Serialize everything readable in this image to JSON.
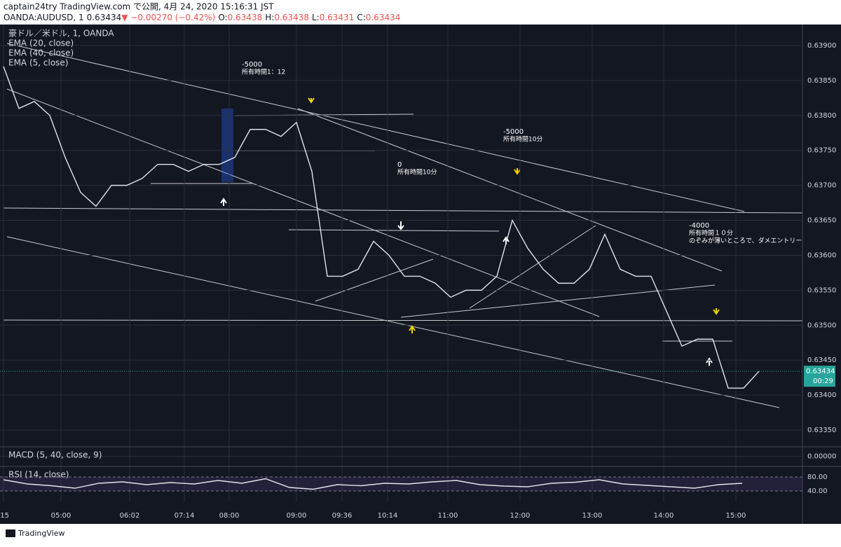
{
  "header": {
    "line1": "captain24try TradingView.com で公開, 4月 24, 2020 15:16:31 JST",
    "symbol": "OANDA:AUDUSD, 1",
    "last": "0.63434",
    "change": "▼ −0.00270 (−0.42%)",
    "o_label": "O:",
    "o": "0.63438",
    "h_label": "H:",
    "h": "0.63438",
    "l_label": "L:",
    "l": "0.63431",
    "c_label": "C:",
    "c": "0.63434"
  },
  "chart_data": [
    {
      "type": "line",
      "title": "豪ドル／米ドル, 1, OANDA",
      "indicators": [
        "EMA (20, close)",
        "EMA (40, close)",
        "EMA (5, close)"
      ],
      "color": "#e0e3eb",
      "values": [
        0.6387,
        0.6381,
        0.6382,
        0.638,
        0.6374,
        0.6369,
        0.6367,
        0.637,
        0.637,
        0.6371,
        0.6373,
        0.6373,
        0.6372,
        0.6373,
        0.6373,
        0.6374,
        0.6378,
        0.6378,
        0.6377,
        0.6379,
        0.6372,
        0.6357,
        0.6357,
        0.6358,
        0.6362,
        0.636,
        0.6357,
        0.6357,
        0.6356,
        0.6354,
        0.6355,
        0.6355,
        0.6357,
        0.6365,
        0.6361,
        0.6358,
        0.6356,
        0.6356,
        0.6358,
        0.6363,
        0.6358,
        0.6357,
        0.6357,
        0.6352,
        0.6347,
        0.6348,
        0.6348,
        0.6341,
        0.6341,
        0.63434
      ],
      "ylim": [
        0.63326,
        0.6393
      ],
      "yticks": [
        {
          "value": 0.639,
          "label": "0.63900"
        },
        {
          "value": 0.6385,
          "label": "0.63850"
        },
        {
          "value": 0.638,
          "label": "0.63800"
        },
        {
          "value": 0.6375,
          "label": "0.63750"
        },
        {
          "value": 0.637,
          "label": "0.63700"
        },
        {
          "value": 0.6365,
          "label": "0.63650"
        },
        {
          "value": 0.636,
          "label": "0.63600"
        },
        {
          "value": 0.6355,
          "label": "0.63550"
        },
        {
          "value": 0.635,
          "label": "0.63500"
        },
        {
          "value": 0.6345,
          "label": "0.63450"
        },
        {
          "value": 0.634,
          "label": "0.63400"
        },
        {
          "value": 0.6335,
          "label": "0.63350"
        }
      ],
      "xticks": [
        ":15",
        "05:00",
        "06:02",
        "07:14",
        "08:00",
        "09:00",
        "09:36",
        "10:14",
        "11:00",
        "12:00",
        "13:00",
        "14:00",
        "15:00"
      ],
      "countdown": "00:29",
      "grid": true,
      "annotations": [
        {
          "lines": [
            "-5000",
            "所有時間1：12"
          ]
        },
        {
          "lines": [
            "0",
            "所有時間10分"
          ]
        },
        {
          "lines": [
            "-5000",
            "所有時間10分"
          ]
        },
        {
          "lines": [
            "-4000",
            "所有時間１０分",
            "のぞみが薄いところで、ダメエントリー"
          ]
        }
      ]
    },
    {
      "type": "macd",
      "title": "MACD (5, 40, close, 9)",
      "ylim": [
        -0.00012,
        0.00011
      ],
      "yticks": [
        {
          "value": 0,
          "label": "0.00000"
        }
      ]
    },
    {
      "type": "rsi",
      "title": "RSI (14, close)",
      "color": "#e0e3eb",
      "ylim": [
        10,
        106
      ],
      "values": [
        72,
        60,
        55,
        48,
        62,
        66,
        58,
        64,
        60,
        70,
        62,
        75,
        50,
        45,
        58,
        55,
        62,
        60,
        66,
        70,
        58,
        54,
        52,
        62,
        65,
        72,
        60,
        56,
        52,
        48,
        58,
        62
      ],
      "yticks": [
        {
          "value": 80,
          "label": "80.00"
        },
        {
          "value": 40,
          "label": "40.00"
        }
      ]
    }
  ],
  "footer": "TradingView"
}
